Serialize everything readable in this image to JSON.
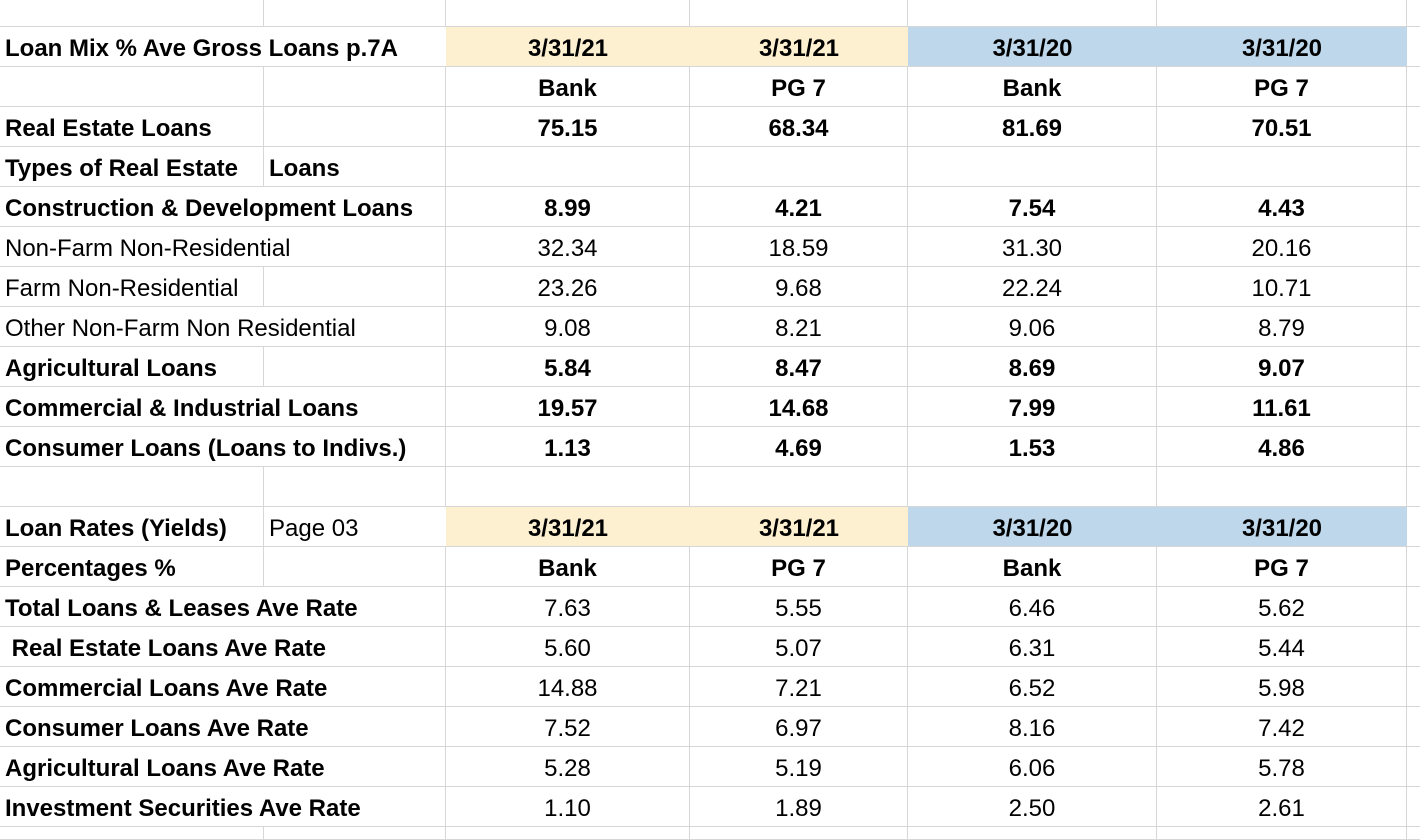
{
  "colors": {
    "band_2021": "#fdf0d0",
    "band_2020": "#bed7eb",
    "gridline": "#d6d6d6",
    "text": "#000000",
    "background": "#ffffff"
  },
  "loan_mix": {
    "title": "Loan Mix % Ave Gross Loans p.7A",
    "period_headers": [
      "3/31/21",
      "3/31/21",
      "3/31/20",
      "3/31/20"
    ],
    "entity_headers": [
      "Bank",
      "PG 7",
      "Bank",
      "PG 7"
    ],
    "rows": [
      {
        "label": "Real Estate Loans",
        "bold": true,
        "values": [
          "75.15",
          "68.34",
          "81.69",
          "70.51"
        ]
      },
      {
        "label": "Types of Real Estate",
        "label2": "Loans",
        "bold": true,
        "values": [
          "",
          "",
          "",
          ""
        ]
      },
      {
        "label": "Construction & Development Loans",
        "bold": true,
        "values": [
          "8.99",
          "4.21",
          "7.54",
          "4.43"
        ]
      },
      {
        "label": "Non-Farm Non-Residential",
        "bold": false,
        "values": [
          "32.34",
          "18.59",
          "31.30",
          "20.16"
        ]
      },
      {
        "label": "Farm Non-Residential",
        "bold": false,
        "values": [
          "23.26",
          "9.68",
          "22.24",
          "10.71"
        ]
      },
      {
        "label": "Other Non-Farm Non Residential",
        "bold": false,
        "values": [
          "9.08",
          "8.21",
          "9.06",
          "8.79"
        ]
      },
      {
        "label": "Agricultural Loans",
        "bold": true,
        "values": [
          "5.84",
          "8.47",
          "8.69",
          "9.07"
        ]
      },
      {
        "label": "Commercial & Industrial Loans",
        "bold": true,
        "values": [
          "19.57",
          "14.68",
          "7.99",
          "11.61"
        ]
      },
      {
        "label": "Consumer Loans (Loans to Indivs.)",
        "bold": true,
        "values": [
          "1.13",
          "4.69",
          "1.53",
          "4.86"
        ]
      }
    ]
  },
  "loan_rates": {
    "title": "Loan Rates (Yields)",
    "page_ref": "Page 03",
    "subtitle": "Percentages %",
    "period_headers": [
      "3/31/21",
      "3/31/21",
      "3/31/20",
      "3/31/20"
    ],
    "entity_headers": [
      "Bank",
      "PG 7",
      "Bank",
      "PG 7"
    ],
    "rows": [
      {
        "label": "Total Loans & Leases Ave Rate",
        "values": [
          "7.63",
          "5.55",
          "6.46",
          "5.62"
        ]
      },
      {
        "label": " Real Estate Loans Ave Rate",
        "values": [
          "5.60",
          "5.07",
          "6.31",
          "5.44"
        ]
      },
      {
        "label": "Commercial Loans Ave Rate",
        "values": [
          "14.88",
          "7.21",
          "6.52",
          "5.98"
        ]
      },
      {
        "label": "Consumer Loans Ave Rate",
        "values": [
          "7.52",
          "6.97",
          "8.16",
          "7.42"
        ]
      },
      {
        "label": "Agricultural Loans Ave Rate",
        "values": [
          "5.28",
          "5.19",
          "6.06",
          "5.78"
        ]
      },
      {
        "label": "Investment Securities Ave Rate",
        "values": [
          "1.10",
          "1.89",
          "2.50",
          "2.61"
        ]
      }
    ]
  }
}
